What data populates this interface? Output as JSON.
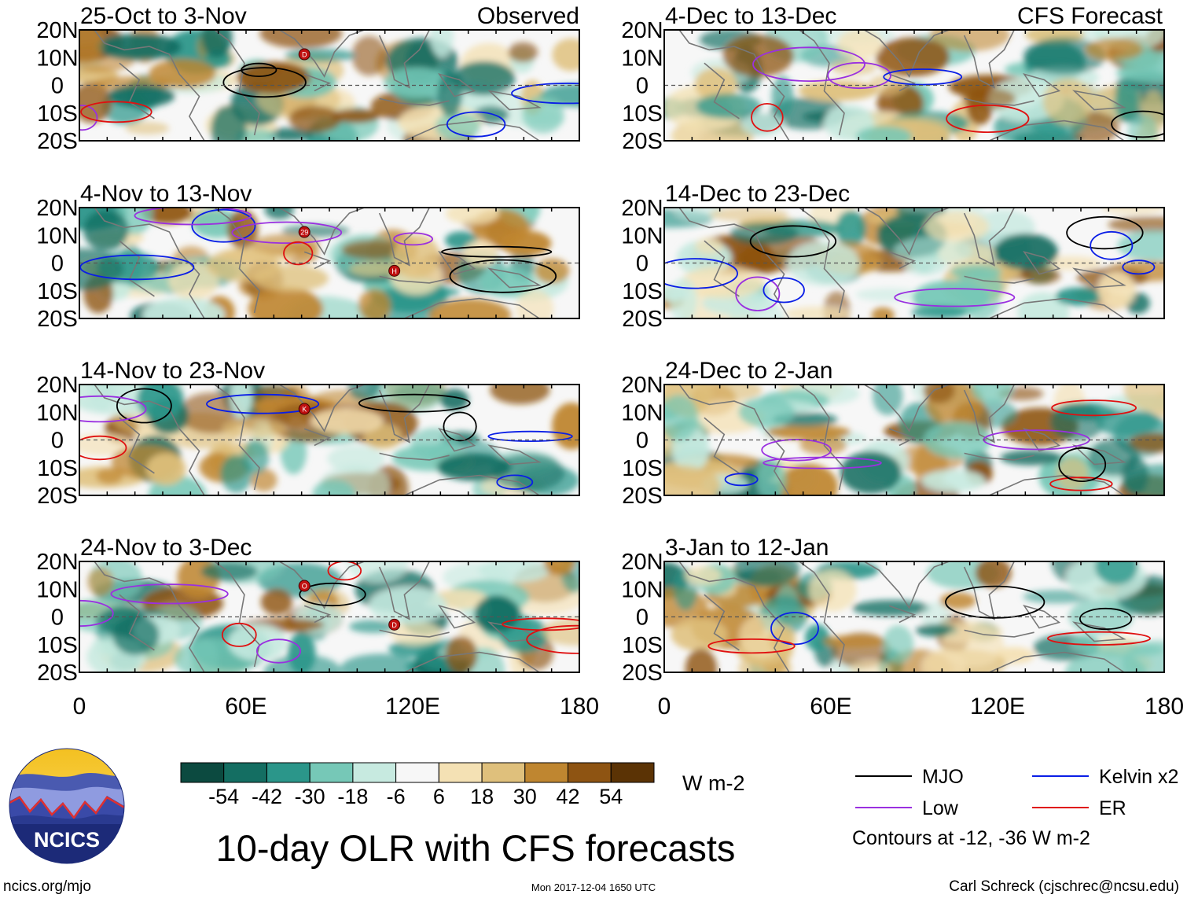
{
  "header": {
    "left_label": "Observed",
    "right_label": "CFS Forecast"
  },
  "chart_data": {
    "type": "heatmap",
    "title": "10-day OLR with CFS forecasts",
    "variable": "OLR anomaly",
    "units": "W m-2",
    "x_axis": {
      "ticks": [
        "0",
        "60E",
        "120E",
        "180"
      ],
      "range_deg": [
        0,
        180
      ]
    },
    "y_axis": {
      "ticks": [
        "20N",
        "10N",
        "0",
        "10S",
        "20S"
      ],
      "range_deg": [
        -20,
        20
      ]
    },
    "colorbar": {
      "ticks": [
        "-54",
        "-42",
        "-30",
        "-18",
        "-6",
        "6",
        "18",
        "30",
        "42",
        "54"
      ],
      "colors": [
        "#0c4a40",
        "#146e62",
        "#2b968a",
        "#76c8b7",
        "#c7eae0",
        "#f7f7f7",
        "#f4e1b4",
        "#dfc07c",
        "#bf8630",
        "#8e5412",
        "#5b3305"
      ]
    },
    "panels": [
      {
        "id": "p1",
        "title": "25-Oct to 3-Nov",
        "source": "Observed",
        "storms": [
          "D"
        ]
      },
      {
        "id": "p2",
        "title": "4-Nov to 13-Nov",
        "source": "Observed",
        "storms": [
          "29",
          "H"
        ]
      },
      {
        "id": "p3",
        "title": "14-Nov to 23-Nov",
        "source": "Observed",
        "storms": [
          "K"
        ]
      },
      {
        "id": "p4",
        "title": "24-Nov to 3-Dec",
        "source": "Observed",
        "storms": [
          "O",
          "D"
        ]
      },
      {
        "id": "p5",
        "title": "4-Dec to 13-Dec",
        "source": "CFS Forecast",
        "storms": []
      },
      {
        "id": "p6",
        "title": "14-Dec to 23-Dec",
        "source": "CFS Forecast",
        "storms": []
      },
      {
        "id": "p7",
        "title": "24-Dec to 2-Jan",
        "source": "CFS Forecast",
        "storms": []
      },
      {
        "id": "p8",
        "title": "3-Jan to 12-Jan",
        "source": "CFS Forecast",
        "storms": []
      }
    ],
    "legend": {
      "entries": [
        {
          "name": "MJO",
          "color": "#000000"
        },
        {
          "name": "Kelvin x2",
          "color": "#0a1ee6"
        },
        {
          "name": "Low",
          "color": "#9a30e0"
        },
        {
          "name": "ER",
          "color": "#e01010"
        }
      ],
      "note": "Contours at -12, -36 W m-2"
    }
  },
  "footer": {
    "logo_text": "NCICS",
    "url": "ncics.org/mjo",
    "timestamp": "Mon 2017-12-04 1650 UTC",
    "credit": "Carl Schreck (cjschrec@ncsu.edu)"
  }
}
